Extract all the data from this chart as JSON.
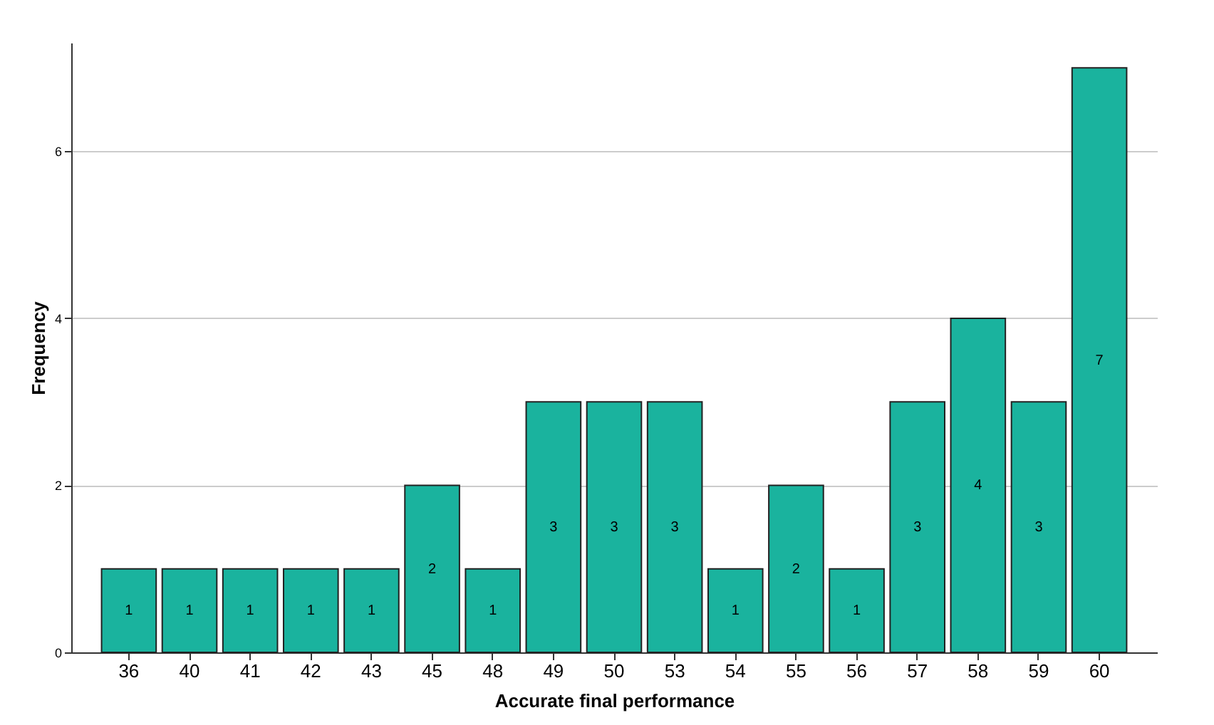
{
  "chart_data": {
    "type": "bar",
    "xlabel": "Accurate final performance",
    "ylabel": "Frequency",
    "categories": [
      "36",
      "40",
      "41",
      "42",
      "43",
      "45",
      "48",
      "49",
      "50",
      "53",
      "54",
      "55",
      "56",
      "57",
      "58",
      "59",
      "60"
    ],
    "values": [
      1,
      1,
      1,
      1,
      1,
      2,
      1,
      3,
      3,
      3,
      1,
      2,
      1,
      3,
      4,
      3,
      7
    ],
    "color": "#1ab39e",
    "ylim": [
      0,
      7.3
    ],
    "yticks": [
      0,
      2,
      4,
      6
    ],
    "grid": "y",
    "data_labels": true
  }
}
